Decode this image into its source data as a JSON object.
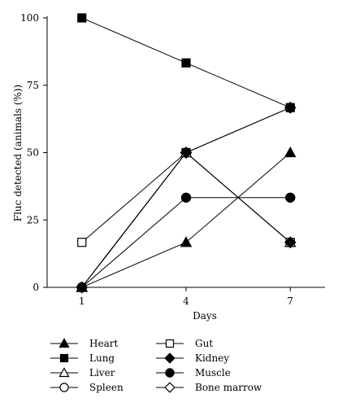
{
  "chart_data": {
    "type": "line",
    "title": "",
    "xlabel": "Days",
    "ylabel": "Fluc detected (animals (%))",
    "x": [
      1,
      4,
      7
    ],
    "x_tick_labels": [
      "1",
      "4",
      "7"
    ],
    "ylim": [
      0,
      100
    ],
    "y_ticks": [
      0,
      25,
      50,
      75,
      100
    ],
    "y_tick_labels": [
      "0",
      "25",
      "50",
      "75",
      "100"
    ],
    "grid": false,
    "legend_position": "bottom",
    "series": [
      {
        "name": "Heart",
        "marker": "triangle",
        "filled": true,
        "values": [
          0,
          16.7,
          50
        ]
      },
      {
        "name": "Lung",
        "marker": "square",
        "filled": true,
        "values": [
          100,
          83.3,
          66.7
        ]
      },
      {
        "name": "Liver",
        "marker": "triangle",
        "filled": false,
        "values": [
          0,
          50,
          16.7
        ]
      },
      {
        "name": "Spleen",
        "marker": "circle",
        "filled": false,
        "values": [
          0,
          50,
          66.7
        ]
      },
      {
        "name": "Gut",
        "marker": "square",
        "filled": false,
        "values": [
          16.7,
          50,
          16.7
        ]
      },
      {
        "name": "Kidney",
        "marker": "diamond",
        "filled": true,
        "values": [
          0,
          50,
          16.7
        ]
      },
      {
        "name": "Muscle",
        "marker": "circle",
        "filled": true,
        "values": [
          0,
          33.3,
          33.3
        ]
      },
      {
        "name": "Bone marrow",
        "marker": "diamond",
        "filled": false,
        "values": [
          0,
          50,
          66.7
        ]
      }
    ]
  },
  "colors": {
    "line": "#000000",
    "background": "#ffffff"
  }
}
